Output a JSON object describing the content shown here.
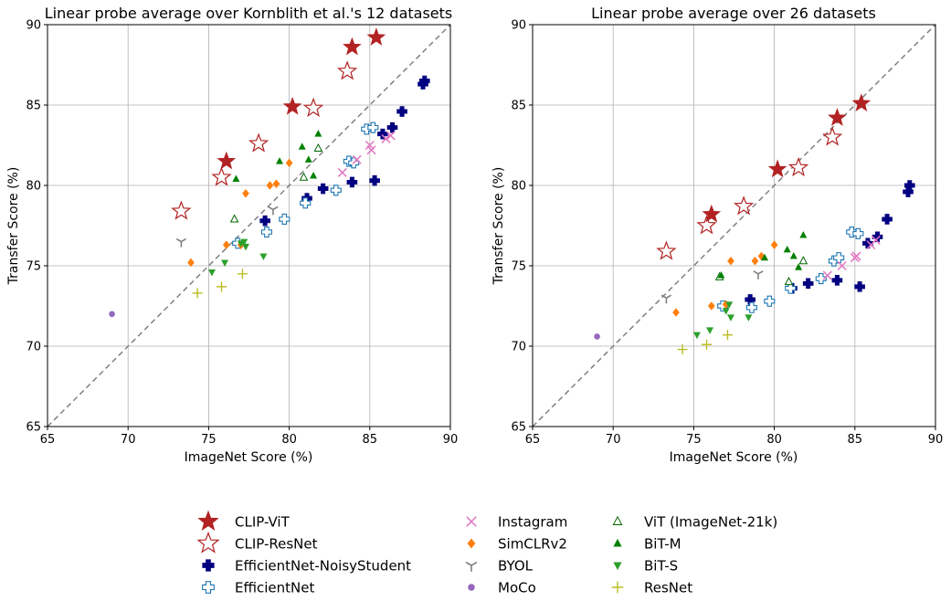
{
  "chart_data": [
    {
      "type": "scatter",
      "title": "Linear probe average over Kornblith et al.'s 12 datasets",
      "xlabel": "ImageNet Score (%)",
      "ylabel": "Transfer Score (%)",
      "xlim": [
        65,
        90
      ],
      "ylim": [
        65,
        90
      ],
      "xticks": [
        "65",
        "70",
        "75",
        "80",
        "85",
        "90"
      ],
      "yticks": [
        "65",
        "70",
        "75",
        "80",
        "85",
        "90"
      ],
      "grid": true,
      "diagonal": "y = x (dashed)",
      "series": [
        {
          "name": "CLIP-ViT",
          "points": [
            [
              76.1,
              81.5
            ],
            [
              80.2,
              84.9
            ],
            [
              83.9,
              88.6
            ],
            [
              85.4,
              89.2
            ]
          ]
        },
        {
          "name": "CLIP-ResNet",
          "points": [
            [
              73.3,
              78.4
            ],
            [
              75.8,
              80.5
            ],
            [
              78.1,
              82.6
            ],
            [
              81.5,
              84.8
            ],
            [
              83.6,
              87.1
            ]
          ]
        },
        {
          "name": "EfficientNet-NoisyStudent",
          "points": [
            [
              78.5,
              77.8
            ],
            [
              81.1,
              79.2
            ],
            [
              82.1,
              79.8
            ],
            [
              83.9,
              80.2
            ],
            [
              85.3,
              80.3
            ],
            [
              85.8,
              83.2
            ],
            [
              86.4,
              83.6
            ],
            [
              87.0,
              84.6
            ],
            [
              88.3,
              86.3
            ],
            [
              88.4,
              86.5
            ]
          ]
        },
        {
          "name": "EfficientNet",
          "points": [
            [
              76.8,
              76.4
            ],
            [
              78.6,
              77.1
            ],
            [
              79.7,
              77.9
            ],
            [
              81.0,
              78.9
            ],
            [
              82.9,
              79.7
            ],
            [
              83.7,
              81.5
            ],
            [
              84.0,
              81.4
            ],
            [
              84.8,
              83.5
            ],
            [
              85.2,
              83.6
            ]
          ]
        },
        {
          "name": "Instagram",
          "points": [
            [
              83.3,
              80.8
            ],
            [
              84.2,
              81.6
            ],
            [
              85.1,
              82.2
            ],
            [
              85.0,
              82.5
            ],
            [
              86.0,
              82.9
            ],
            [
              86.3,
              83.1
            ]
          ]
        },
        {
          "name": "SimCLRv2",
          "points": [
            [
              73.9,
              75.2
            ],
            [
              76.1,
              76.3
            ],
            [
              77.0,
              76.3
            ],
            [
              77.3,
              79.5
            ],
            [
              78.8,
              80.0
            ],
            [
              79.2,
              80.1
            ],
            [
              80.0,
              81.4
            ]
          ]
        },
        {
          "name": "BYOL",
          "points": [
            [
              73.3,
              76.5
            ],
            [
              79.0,
              78.5
            ]
          ]
        },
        {
          "name": "MoCo",
          "points": [
            [
              69.0,
              72.0
            ]
          ]
        },
        {
          "name": "ViT (ImageNet-21k)",
          "points": [
            [
              76.6,
              77.9
            ],
            [
              80.9,
              80.5
            ],
            [
              81.8,
              82.3
            ]
          ]
        },
        {
          "name": "BiT-M",
          "points": [
            [
              76.7,
              80.4
            ],
            [
              79.4,
              81.5
            ],
            [
              80.8,
              82.4
            ],
            [
              81.2,
              81.6
            ],
            [
              81.5,
              80.6
            ],
            [
              81.8,
              83.2
            ]
          ]
        },
        {
          "name": "BiT-S",
          "points": [
            [
              75.2,
              74.6
            ],
            [
              76.0,
              75.2
            ],
            [
              77.0,
              76.4
            ],
            [
              77.2,
              76.5
            ],
            [
              77.3,
              76.2
            ],
            [
              78.4,
              75.6
            ]
          ]
        },
        {
          "name": "ResNet",
          "points": [
            [
              74.3,
              73.3
            ],
            [
              75.8,
              73.7
            ],
            [
              77.1,
              74.5
            ]
          ]
        }
      ]
    },
    {
      "type": "scatter",
      "title": "Linear probe average over 26 datasets",
      "xlabel": "ImageNet Score (%)",
      "ylabel": "Transfer Score (%)",
      "xlim": [
        65,
        90
      ],
      "ylim": [
        65,
        90
      ],
      "xticks": [
        "65",
        "70",
        "75",
        "80",
        "85",
        "90"
      ],
      "yticks": [
        "65",
        "70",
        "75",
        "80",
        "85",
        "90"
      ],
      "grid": true,
      "diagonal": "y = x (dashed)",
      "series": [
        {
          "name": "CLIP-ViT",
          "points": [
            [
              76.1,
              78.2
            ],
            [
              80.2,
              81.0
            ],
            [
              83.9,
              84.2
            ],
            [
              85.4,
              85.1
            ]
          ]
        },
        {
          "name": "CLIP-ResNet",
          "points": [
            [
              73.3,
              75.9
            ],
            [
              75.8,
              77.5
            ],
            [
              78.1,
              78.7
            ],
            [
              81.5,
              81.1
            ],
            [
              83.6,
              83.0
            ]
          ]
        },
        {
          "name": "EfficientNet-NoisyStudent",
          "points": [
            [
              78.5,
              72.9
            ],
            [
              81.1,
              73.6
            ],
            [
              82.1,
              73.9
            ],
            [
              83.9,
              74.1
            ],
            [
              85.3,
              73.7
            ],
            [
              85.8,
              76.4
            ],
            [
              86.4,
              76.8
            ],
            [
              87.0,
              77.9
            ],
            [
              88.3,
              79.6
            ],
            [
              88.4,
              80.0
            ]
          ]
        },
        {
          "name": "EfficientNet",
          "points": [
            [
              76.8,
              72.5
            ],
            [
              78.6,
              72.4
            ],
            [
              79.7,
              72.8
            ],
            [
              81.0,
              73.6
            ],
            [
              82.9,
              74.2
            ],
            [
              83.7,
              75.3
            ],
            [
              84.0,
              75.5
            ],
            [
              84.8,
              77.1
            ],
            [
              85.2,
              77.0
            ]
          ]
        },
        {
          "name": "Instagram",
          "points": [
            [
              83.3,
              74.4
            ],
            [
              84.2,
              75.0
            ],
            [
              85.1,
              75.6
            ],
            [
              85.0,
              75.5
            ],
            [
              86.0,
              76.3
            ],
            [
              86.3,
              76.6
            ]
          ]
        },
        {
          "name": "SimCLRv2",
          "points": [
            [
              73.9,
              72.1
            ],
            [
              76.1,
              72.5
            ],
            [
              77.0,
              72.6
            ],
            [
              77.3,
              75.3
            ],
            [
              78.8,
              75.3
            ],
            [
              79.2,
              75.6
            ],
            [
              80.0,
              76.3
            ]
          ]
        },
        {
          "name": "BYOL",
          "points": [
            [
              73.3,
              73.0
            ],
            [
              79.0,
              74.5
            ]
          ]
        },
        {
          "name": "MoCo",
          "points": [
            [
              69.0,
              70.6
            ]
          ]
        },
        {
          "name": "ViT (ImageNet-21k)",
          "points": [
            [
              76.6,
              74.3
            ],
            [
              80.9,
              74.0
            ],
            [
              81.8,
              75.3
            ]
          ]
        },
        {
          "name": "BiT-M",
          "points": [
            [
              76.7,
              74.4
            ],
            [
              79.4,
              75.5
            ],
            [
              80.8,
              76.0
            ],
            [
              81.2,
              75.6
            ],
            [
              81.5,
              74.9
            ],
            [
              81.8,
              76.9
            ]
          ]
        },
        {
          "name": "BiT-S",
          "points": [
            [
              75.2,
              70.7
            ],
            [
              76.0,
              71.0
            ],
            [
              77.0,
              72.2
            ],
            [
              77.2,
              72.6
            ],
            [
              77.3,
              71.8
            ],
            [
              78.4,
              71.8
            ]
          ]
        },
        {
          "name": "ResNet",
          "points": [
            [
              74.3,
              69.8
            ],
            [
              75.8,
              70.1
            ],
            [
              77.1,
              70.7
            ]
          ]
        }
      ]
    }
  ],
  "legend": {
    "placement": "bottom-center",
    "items": [
      {
        "label": "CLIP-ViT",
        "marker": "star-filled",
        "color": "#b22222"
      },
      {
        "label": "CLIP-ResNet",
        "marker": "star-open",
        "color": "#b22222"
      },
      {
        "label": "EfficientNet-NoisyStudent",
        "marker": "plus-filled",
        "color": "#000080"
      },
      {
        "label": "EfficientNet",
        "marker": "plus-open",
        "color": "#1f77b4"
      },
      {
        "label": "Instagram",
        "marker": "x",
        "color": "#e377c2"
      },
      {
        "label": "SimCLRv2",
        "marker": "diamond",
        "color": "#ff7f0e"
      },
      {
        "label": "BYOL",
        "marker": "tri-y",
        "color": "#7f7f7f"
      },
      {
        "label": "MoCo",
        "marker": "circle",
        "color": "#9467bd"
      },
      {
        "label": "ViT (ImageNet-21k)",
        "marker": "triangle-up-open",
        "color": "#006400"
      },
      {
        "label": "BiT-M",
        "marker": "triangle-up",
        "color": "#008000"
      },
      {
        "label": "BiT-S",
        "marker": "triangle-down",
        "color": "#2ca02c"
      },
      {
        "label": "ResNet",
        "marker": "plus-thin",
        "color": "#bcbd22"
      }
    ]
  }
}
